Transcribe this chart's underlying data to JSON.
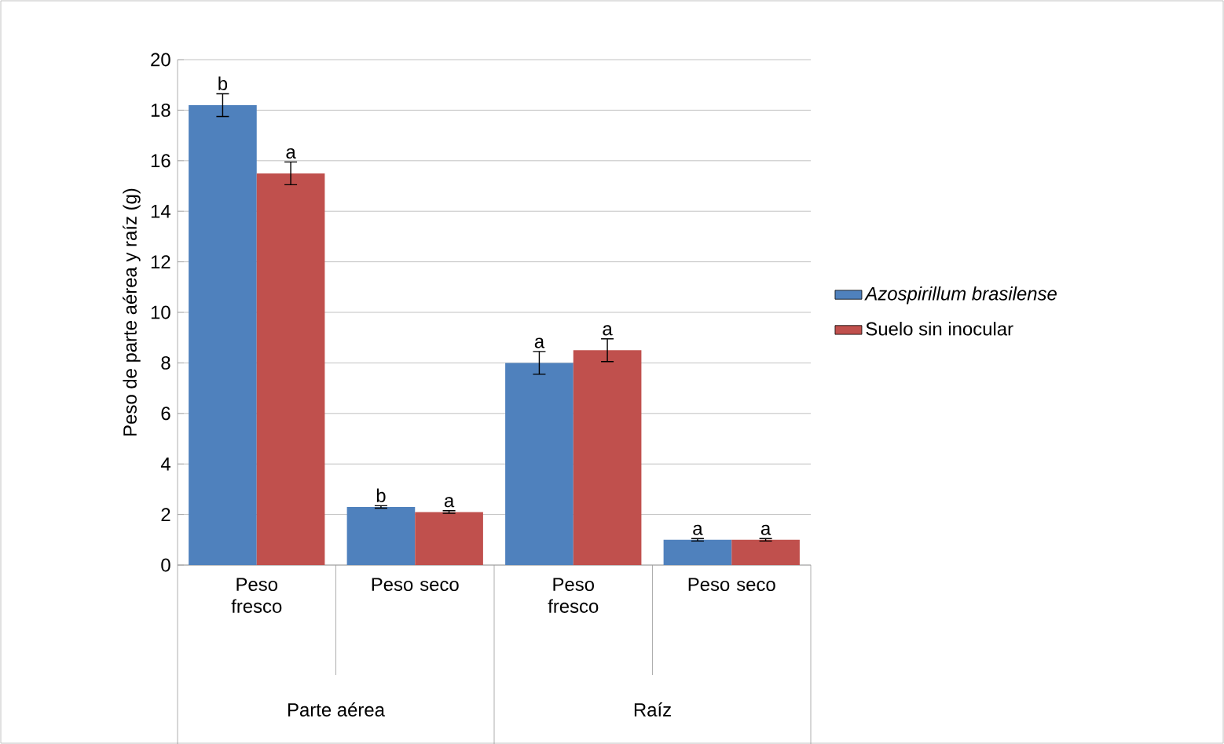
{
  "chart_data": {
    "type": "bar",
    "ylabel": "Peso de parte aérea y raíz  (g)",
    "categories": [
      "Peso fresco",
      "Peso seco",
      "Peso fresco",
      "Peso seco"
    ],
    "series": [
      {
        "name": "*Azospirillum brasilense*",
        "color": "#4f81bd",
        "values": [
          18.2,
          2.3,
          8.0,
          1.0
        ],
        "errors": [
          0.45,
          0.05,
          0.45,
          0.05
        ],
        "value_labels": [
          "b",
          "b",
          "a",
          "a"
        ]
      },
      {
        "name": "Suelo sin inocular",
        "color": "#c0504d",
        "values": [
          15.5,
          2.1,
          8.5,
          1.0
        ],
        "errors": [
          0.45,
          0.05,
          0.45,
          0.05
        ],
        "value_labels": [
          "a",
          "a",
          "a",
          "a"
        ]
      }
    ],
    "ylim": [
      0,
      20
    ],
    "yticks": [
      0,
      2,
      4,
      6,
      8,
      10,
      12,
      14,
      16,
      18,
      20
    ],
    "grid": "y",
    "legend": "right",
    "annotations": [
      "Parte aérea",
      "Raíz"
    ]
  }
}
